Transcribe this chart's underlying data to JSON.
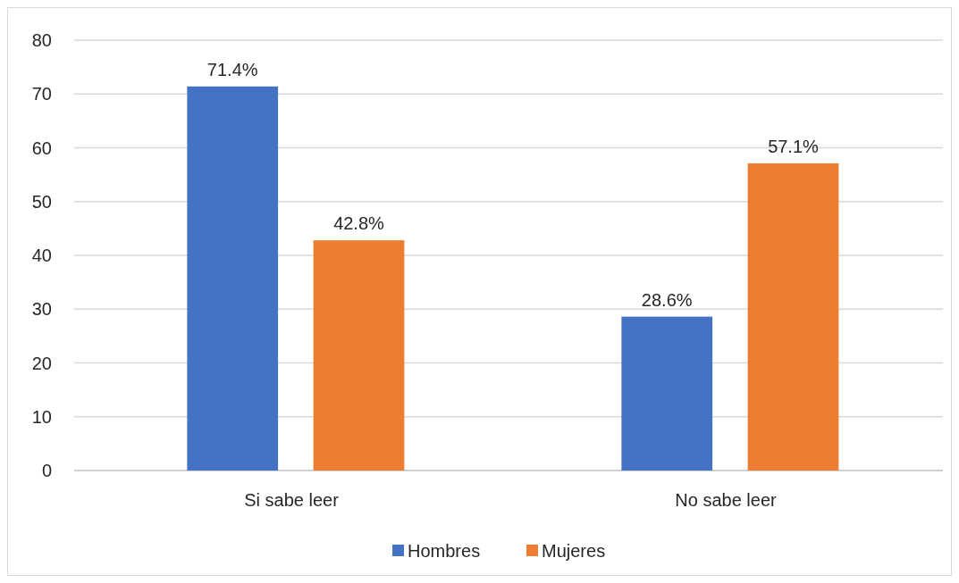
{
  "chart_data": {
    "type": "bar",
    "categories": [
      "Si sabe leer",
      "No sabe leer"
    ],
    "series": [
      {
        "name": "Hombres",
        "color": "#4472c4",
        "values": [
          71.4,
          28.6
        ],
        "value_labels": [
          "71.4%",
          "28.6%"
        ]
      },
      {
        "name": "Mujeres",
        "color": "#ed7d31",
        "values": [
          42.8,
          57.1
        ],
        "value_labels": [
          "42.8%",
          "57.1%"
        ]
      }
    ],
    "ylim": [
      0,
      80
    ],
    "yticks": [
      0,
      10,
      20,
      30,
      40,
      50,
      60,
      70,
      80
    ],
    "grid": "y",
    "legend": "bottom"
  }
}
